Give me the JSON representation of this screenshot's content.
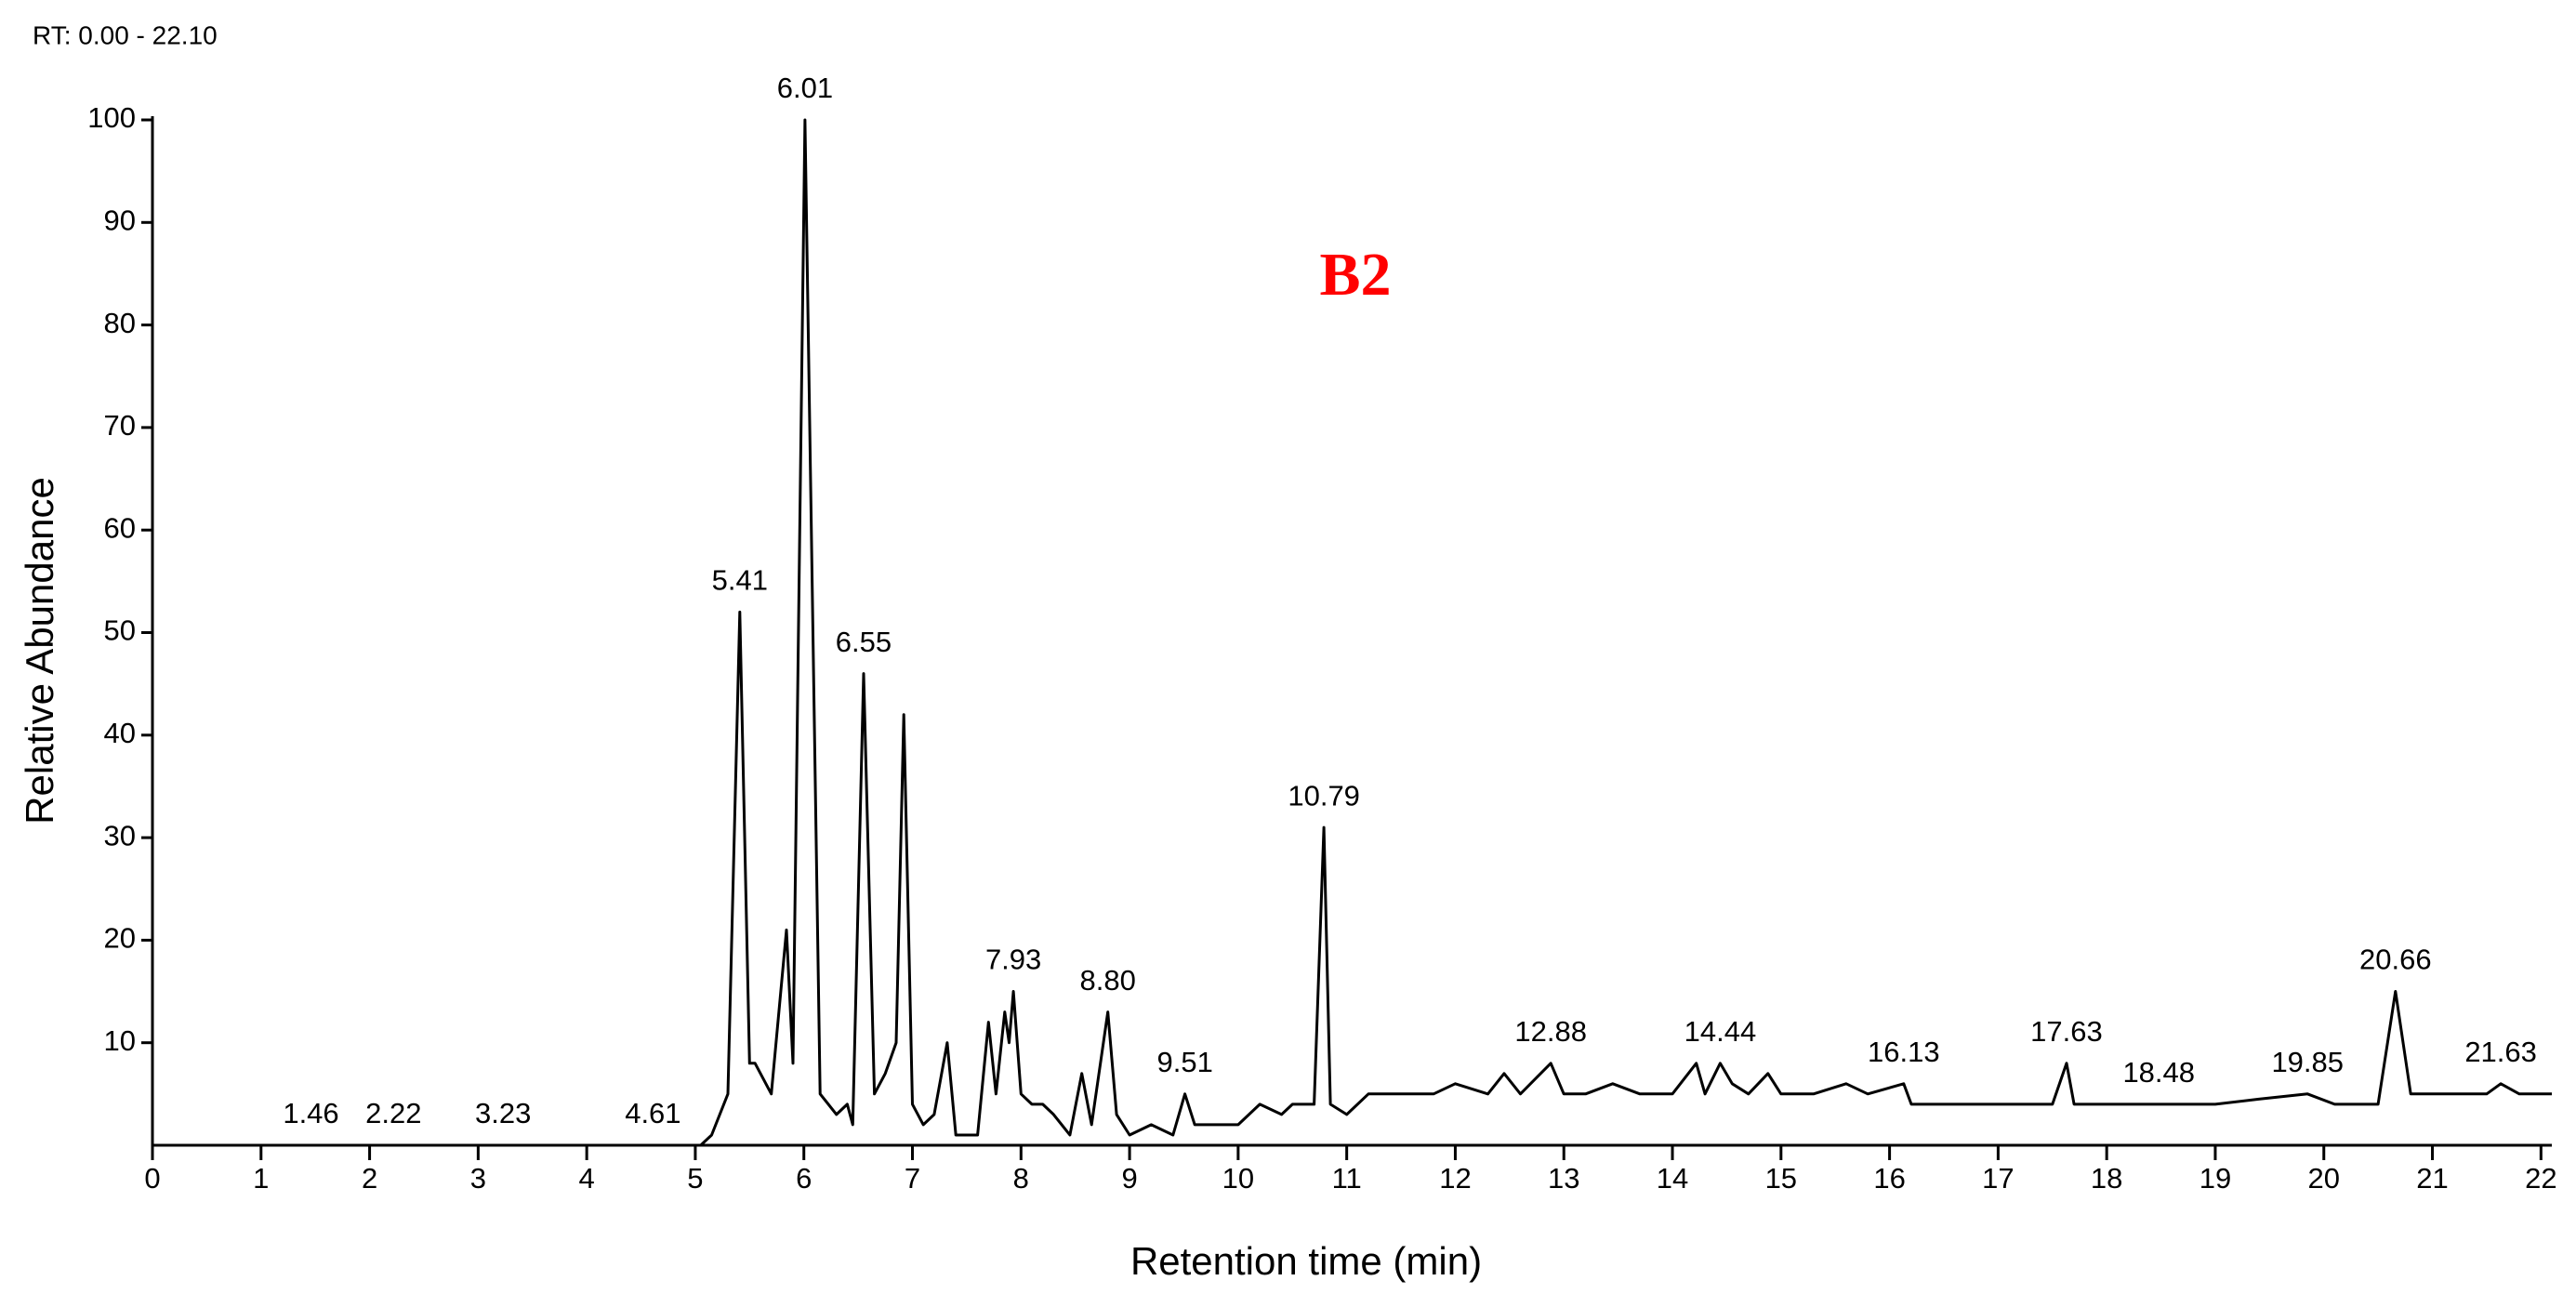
{
  "chart_data": {
    "type": "line",
    "range_text": "RT: 0.00 - 22.10",
    "panel_label": "B2",
    "x_label": "Retention time (min)",
    "y_label": "Relative Abundance",
    "color": "#000000",
    "panel_label_color": "#ff0000",
    "xlim": [
      0,
      22.1
    ],
    "ylim": [
      0,
      100
    ],
    "xticks": [
      0,
      1,
      2,
      3,
      4,
      5,
      6,
      7,
      8,
      9,
      10,
      11,
      12,
      13,
      14,
      15,
      16,
      17,
      18,
      19,
      20,
      21,
      22
    ],
    "yticks": [
      10,
      20,
      30,
      40,
      50,
      60,
      70,
      80,
      90,
      100
    ],
    "x": [
      0,
      5.05,
      5.15,
      5.3,
      5.41,
      5.5,
      5.55,
      5.7,
      5.84,
      5.9,
      6.01,
      6.15,
      6.3,
      6.4,
      6.45,
      6.55,
      6.65,
      6.75,
      6.85,
      6.92,
      7.0,
      7.1,
      7.2,
      7.32,
      7.4,
      7.6,
      7.7,
      7.77,
      7.85,
      7.89,
      7.93,
      8.0,
      8.1,
      8.2,
      8.3,
      8.45,
      8.56,
      8.65,
      8.8,
      8.88,
      9.0,
      9.2,
      9.4,
      9.51,
      9.6,
      9.8,
      10.0,
      10.2,
      10.4,
      10.5,
      10.7,
      10.79,
      10.85,
      11.0,
      11.2,
      11.5,
      11.8,
      12.0,
      12.3,
      12.45,
      12.6,
      12.88,
      13.0,
      13.2,
      13.45,
      13.7,
      14.0,
      14.22,
      14.3,
      14.44,
      14.55,
      14.7,
      14.88,
      15.0,
      15.3,
      15.6,
      15.8,
      16.13,
      16.2,
      16.5,
      17.0,
      17.5,
      17.63,
      17.7,
      18.0,
      18.48,
      19.0,
      19.4,
      19.85,
      20.1,
      20.5,
      20.66,
      20.8,
      21.2,
      21.5,
      21.63,
      21.8,
      22.1
    ],
    "values": [
      0,
      0,
      1,
      5,
      52,
      8,
      8,
      5,
      21,
      8,
      100,
      5,
      3,
      4,
      2,
      46,
      5,
      7,
      10,
      42,
      4,
      2,
      3,
      10,
      1,
      1,
      12,
      5,
      13,
      10,
      15,
      5,
      4,
      4,
      3,
      1,
      7,
      2,
      13,
      3,
      1,
      2,
      1,
      5,
      2,
      2,
      2,
      4,
      3,
      4,
      4,
      31,
      4,
      3,
      5,
      5,
      5,
      6,
      5,
      7,
      5,
      8,
      5,
      5,
      6,
      5,
      5,
      8,
      5,
      8,
      6,
      5,
      7,
      5,
      5,
      6,
      5,
      6,
      4,
      4,
      4,
      4,
      8,
      4,
      4,
      4,
      4,
      4.5,
      5,
      4,
      4,
      15,
      5,
      5,
      5,
      6,
      5,
      5
    ],
    "annotations": [
      {
        "x": 1.46,
        "y": 0,
        "label": "1.46"
      },
      {
        "x": 2.22,
        "y": 0,
        "label": "2.22"
      },
      {
        "x": 3.23,
        "y": 0,
        "label": "3.23"
      },
      {
        "x": 4.61,
        "y": 0,
        "label": "4.61"
      },
      {
        "x": 5.41,
        "y": 52,
        "label": "5.41"
      },
      {
        "x": 6.01,
        "y": 100,
        "label": "6.01"
      },
      {
        "x": 6.55,
        "y": 46,
        "label": "6.55"
      },
      {
        "x": 7.93,
        "y": 15,
        "label": "7.93"
      },
      {
        "x": 8.8,
        "y": 13,
        "label": "8.80"
      },
      {
        "x": 9.51,
        "y": 5,
        "label": "9.51"
      },
      {
        "x": 10.79,
        "y": 31,
        "label": "10.79"
      },
      {
        "x": 12.88,
        "y": 8,
        "label": "12.88"
      },
      {
        "x": 14.44,
        "y": 8,
        "label": "14.44"
      },
      {
        "x": 16.13,
        "y": 6,
        "label": "16.13"
      },
      {
        "x": 17.63,
        "y": 8,
        "label": "17.63"
      },
      {
        "x": 18.48,
        "y": 4,
        "label": "18.48"
      },
      {
        "x": 19.85,
        "y": 5,
        "label": "19.85"
      },
      {
        "x": 20.66,
        "y": 15,
        "label": "20.66"
      },
      {
        "x": 21.63,
        "y": 6,
        "label": "21.63"
      }
    ]
  }
}
